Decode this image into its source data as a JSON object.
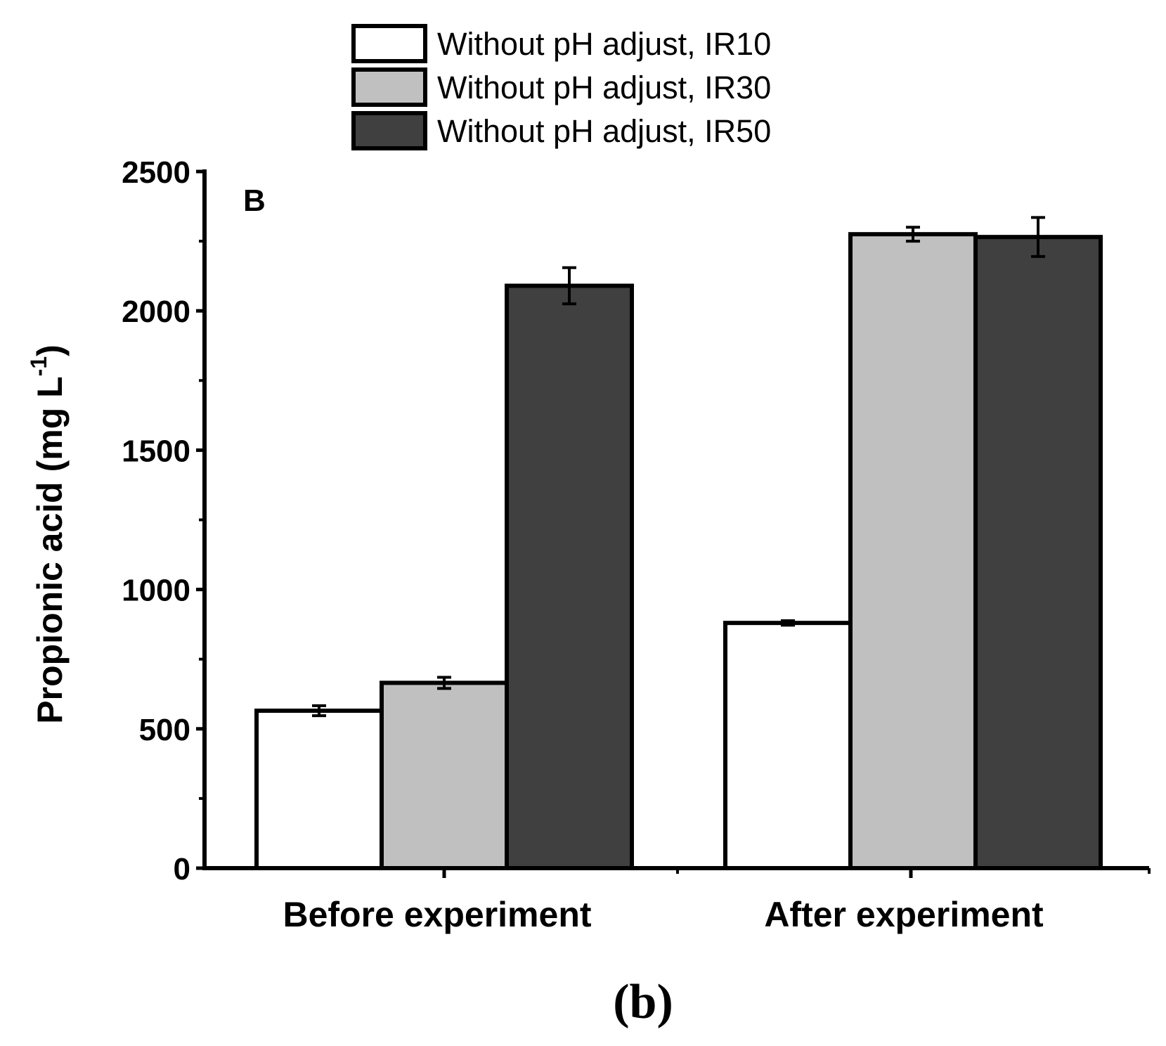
{
  "chart_data": {
    "type": "bar",
    "panel_label": "B",
    "caption": "(b)",
    "ylabel_main": "Propionic acid (mg L",
    "ylabel_sup": "-1",
    "ylabel_close": ")",
    "ylim": [
      0,
      2500
    ],
    "yticks": [
      "0",
      "500",
      "1000",
      "1500",
      "2000",
      "2500"
    ],
    "ytick_values": [
      0,
      500,
      1000,
      1500,
      2000,
      2500
    ],
    "categories": [
      "Before experiment",
      "After experiment"
    ],
    "series": [
      {
        "name": "Without pH adjust, IR10",
        "color": "#ffffff",
        "values": [
          565,
          880
        ],
        "errors": [
          18,
          8
        ]
      },
      {
        "name": "Without pH adjust, IR30",
        "color": "#c0c0c0",
        "values": [
          665,
          2275
        ],
        "errors": [
          20,
          25
        ]
      },
      {
        "name": "Without pH adjust, IR50",
        "color": "#404040",
        "values": [
          2090,
          2265
        ],
        "errors": [
          65,
          70
        ]
      }
    ]
  }
}
